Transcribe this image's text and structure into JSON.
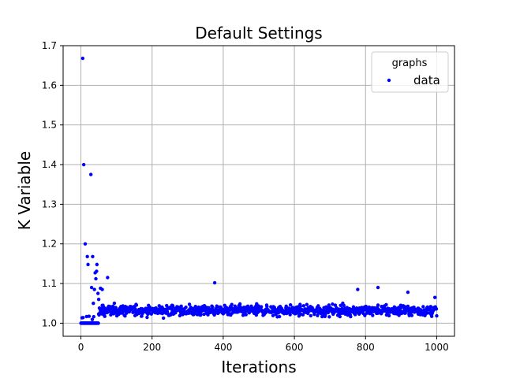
{
  "chart_data": {
    "type": "scatter",
    "title": "Default Settings",
    "xlabel": "Iterations",
    "ylabel": "K Variable",
    "xlim": [
      -50,
      1050
    ],
    "ylim": [
      0.967,
      1.7
    ],
    "xticks": [
      0,
      200,
      400,
      600,
      800,
      1000
    ],
    "yticks": [
      1.0,
      1.1,
      1.2,
      1.3,
      1.4,
      1.5,
      1.6,
      1.7
    ],
    "grid": true,
    "legend": {
      "title": "graphs",
      "placement": "top-right",
      "entries": [
        "data"
      ]
    },
    "series": [
      {
        "name": "data",
        "color": "#0000ff",
        "x": [
          5,
          8,
          12,
          18,
          20,
          28,
          30,
          33,
          35,
          38,
          40,
          42,
          44,
          45,
          48,
          50,
          55,
          60,
          62,
          75,
          376,
          835,
          778,
          919,
          995
        ],
        "y": [
          1.668,
          1.4,
          1.2,
          1.168,
          1.148,
          1.375,
          1.09,
          1.168,
          1.05,
          1.085,
          1.127,
          1.112,
          1.131,
          1.148,
          1.075,
          1.06,
          1.088,
          1.085,
          1.045,
          1.115,
          1.102,
          1.09,
          1.085,
          1.078,
          1.065
        ]
      }
    ]
  }
}
